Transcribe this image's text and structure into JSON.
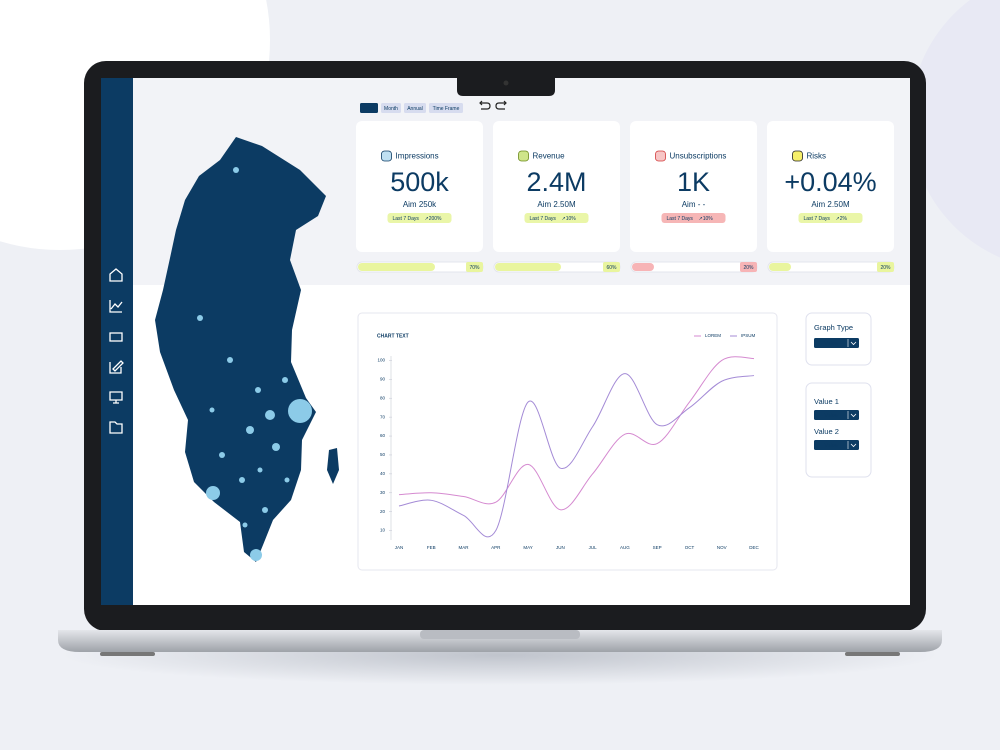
{
  "toolbar": {
    "tabs": [
      "Week",
      "Month",
      "Annual",
      "Time Frame"
    ]
  },
  "cards": [
    {
      "label": "Impressions",
      "value": "500k",
      "aim": "Aim 250k",
      "period": "Last 7 Days",
      "change": "↗200%",
      "progress": {
        "value": 70,
        "label": "70%"
      }
    },
    {
      "label": "Revenue",
      "value": "2.4M",
      "aim": "Aim 2.50M",
      "period": "Last 7 Days",
      "change": "↗10%",
      "progress": {
        "value": 60,
        "label": "60%"
      }
    },
    {
      "label": "Unsubscriptions",
      "value": "1K",
      "aim": "Aim - -",
      "period": "Last 7 Days",
      "change": "↗10%",
      "progress": {
        "value": 20,
        "label": "20%"
      }
    },
    {
      "label": "Risks",
      "value": "+0.04%",
      "aim": "Aim 2.50M",
      "period": "Last 7 Days",
      "change": "↗2%",
      "progress": {
        "value": 20,
        "label": "20%"
      }
    }
  ],
  "chart_data": {
    "type": "line",
    "title": "CHART TEXT",
    "categories": [
      "JAN",
      "FEB",
      "MAR",
      "APR",
      "MAY",
      "JUN",
      "JUL",
      "AUG",
      "SEP",
      "OCT",
      "NOV",
      "DEC"
    ],
    "series": [
      {
        "name": "LOREM",
        "color": "#d58ad0",
        "values": [
          29,
          30,
          28,
          25,
          45,
          21,
          40,
          61,
          56,
          78,
          100,
          101
        ]
      },
      {
        "name": "IPSUM",
        "color": "#a48bd6",
        "values": [
          23,
          26,
          18,
          10,
          78,
          43,
          65,
          93,
          66,
          75,
          89,
          92
        ]
      }
    ],
    "ylim": [
      5,
      105
    ],
    "yticks": [
      10,
      20,
      30,
      40,
      50,
      60,
      70,
      80,
      90,
      100
    ],
    "legend": "top-right"
  },
  "controls": {
    "graph_type": {
      "label": "Graph Type",
      "value": "Value"
    },
    "value1": {
      "label": "Value 1",
      "value": "Value"
    },
    "value2": {
      "label": "Value 2",
      "value": "Value"
    }
  }
}
